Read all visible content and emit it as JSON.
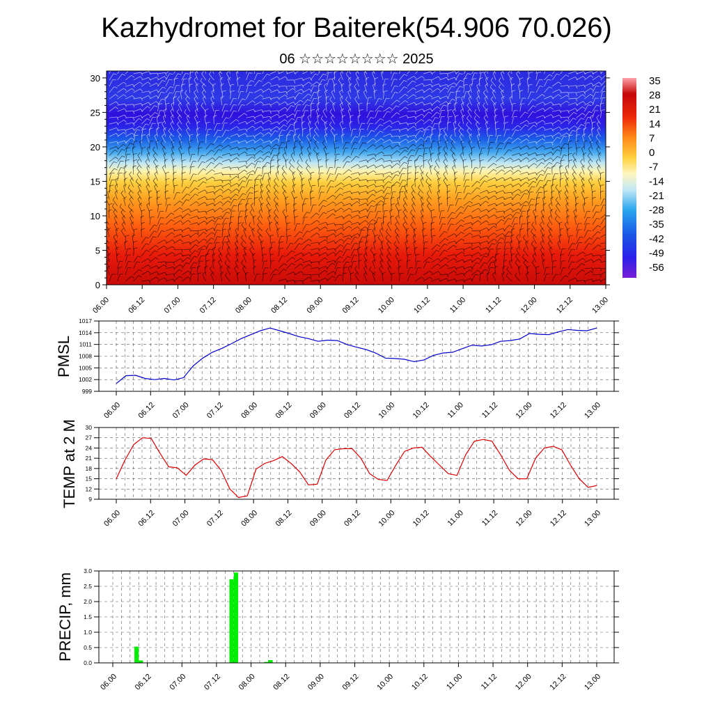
{
  "title": "Kazhydromet for Baiterek(54.906 70.026)",
  "subtitle": "06 ☆☆☆☆☆☆☆☆ 2025",
  "colors": {
    "pmsl_line": "#0000cc",
    "temp_line": "#dd0000",
    "precip_bar": "#00ee00",
    "scale": [
      "#7a1fd6",
      "#2a1fe8",
      "#1a5ae6",
      "#2aa6ee",
      "#8fd6f2",
      "#fffbd0",
      "#ffe060",
      "#ffb020",
      "#ff6a10",
      "#ee1a0a",
      "#c40808",
      "#ff9aa0"
    ]
  },
  "chart_data": [
    {
      "type": "heatmap",
      "name": "cross-section",
      "x_ticks": [
        "06.00",
        "06.12",
        "07.00",
        "07.12",
        "08.00",
        "08.12",
        "09.00",
        "09.12",
        "10.00",
        "10.12",
        "11.00",
        "11.12",
        "12.00",
        "12.12",
        "13.00"
      ],
      "y_ticks": [
        "0",
        "5",
        "10",
        "15",
        "20",
        "25",
        "30"
      ],
      "ylim": [
        0,
        31
      ],
      "colorbar": [
        "35",
        "28",
        "21",
        "14",
        "7",
        "0",
        "-7",
        "-14",
        "-21",
        "-28",
        "-35",
        "-42",
        "-49",
        "-56"
      ],
      "vlim": [
        -63,
        42
      ],
      "overlay": "wind barbs"
    },
    {
      "type": "line",
      "ylabel": "PMSL",
      "x_ticks": [
        "06.00",
        "06.12",
        "07.00",
        "07.12",
        "08.00",
        "08.12",
        "09.00",
        "09.12",
        "10.00",
        "10.12",
        "11.00",
        "11.12",
        "12.00",
        "12.12",
        "13.00"
      ],
      "y_ticks": [
        "999",
        "1002",
        "1005",
        "1008",
        "1011",
        "1014",
        "1017"
      ],
      "ylim": [
        999,
        1017
      ],
      "values": [
        1001.0,
        1003.0,
        1003.1,
        1002.3,
        1002.0,
        1002.3,
        1001.9,
        1002.5,
        1005.5,
        1007.5,
        1009.0,
        1010.0,
        1011.2,
        1012.5,
        1013.5,
        1014.5,
        1015.2,
        1014.5,
        1013.8,
        1013.0,
        1012.5,
        1011.8,
        1012.1,
        1012.0,
        1011.0,
        1010.3,
        1009.7,
        1008.8,
        1007.5,
        1007.4,
        1007.2,
        1006.6,
        1007.0,
        1008.2,
        1008.8,
        1009.0,
        1009.9,
        1010.8,
        1010.6,
        1010.9,
        1011.8,
        1012.0,
        1012.4,
        1013.8,
        1013.6,
        1013.5,
        1014.2,
        1014.8,
        1014.6,
        1014.5,
        1015.2
      ],
      "grid": true
    },
    {
      "type": "line",
      "ylabel": "TEMP at 2 M",
      "x_ticks": [
        "06.00",
        "06.12",
        "07.00",
        "07.12",
        "08.00",
        "08.12",
        "09.00",
        "09.12",
        "10.00",
        "10.12",
        "11.00",
        "11.12",
        "12.00",
        "12.12",
        "13.00"
      ],
      "y_ticks": [
        "9",
        "12",
        "15",
        "18",
        "21",
        "24",
        "27",
        "30"
      ],
      "ylim": [
        9,
        30
      ],
      "values": [
        15.0,
        20.5,
        25.0,
        27.0,
        26.8,
        22.5,
        18.5,
        18.2,
        16.0,
        19.0,
        20.8,
        20.6,
        17.5,
        12.0,
        9.5,
        10.0,
        17.8,
        19.5,
        20.3,
        21.5,
        19.5,
        17.0,
        13.2,
        13.4,
        20.5,
        23.5,
        23.8,
        23.8,
        21.0,
        16.5,
        14.8,
        14.5,
        19.0,
        23.0,
        24.0,
        24.2,
        21.5,
        19.0,
        16.5,
        16.0,
        22.0,
        26.0,
        26.5,
        26.0,
        22.0,
        17.5,
        15.0,
        15.0,
        21.0,
        24.0,
        24.5,
        23.5,
        19.0,
        15.0,
        12.5,
        13.0
      ],
      "grid": true
    },
    {
      "type": "bar",
      "ylabel": "PRECIP, mm",
      "x_ticks": [
        "06.00",
        "06.12",
        "07.00",
        "07.12",
        "08.00",
        "08.12",
        "09.00",
        "09.12",
        "10.00",
        "10.12",
        "11.00",
        "11.12",
        "12.00",
        "12.12",
        "13.00"
      ],
      "y_ticks": [
        "0.0",
        "0.5",
        "1.0",
        "1.5",
        "2.0",
        "2.5",
        "3.0"
      ],
      "ylim": [
        0,
        3.0
      ],
      "bars": [
        {
          "time": 15,
          "value": 0.53
        },
        {
          "time": 18,
          "value": 0.08
        },
        {
          "time": 81,
          "value": 2.73
        },
        {
          "time": 84,
          "value": 2.95
        },
        {
          "time": 105,
          "value": 0.03
        },
        {
          "time": 108,
          "value": 0.09
        }
      ],
      "grid": true
    }
  ]
}
